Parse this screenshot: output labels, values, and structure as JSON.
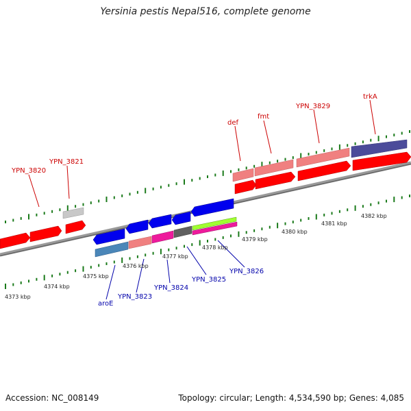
{
  "title": "Yersinia pestis Nepal516, complete genome",
  "footer": {
    "accession": "Accession: NC_008149",
    "topology": "Topology: circular; Length: 4,534,590 bp; Genes: 4,085"
  },
  "colors": {
    "red_label": "#cc0000",
    "blue_label": "#0000aa",
    "tick": "#1a7a1a",
    "backbone": "#888888"
  },
  "scale_labels": [
    "4373 kbp",
    "4374 kbp",
    "4375 kbp",
    "4376 kbp",
    "4377 kbp",
    "4378 kbp",
    "4379 kbp",
    "4380 kbp",
    "4381 kbp",
    "4382 kbp"
  ],
  "forward_labels": [
    "YPN_3820",
    "YPN_3821",
    "def",
    "fmt",
    "YPN_3829",
    "trkA"
  ],
  "reverse_labels": [
    "aroE",
    "YPN_3823",
    "YPN_3824",
    "YPN_3825",
    "YPN_3826"
  ]
}
